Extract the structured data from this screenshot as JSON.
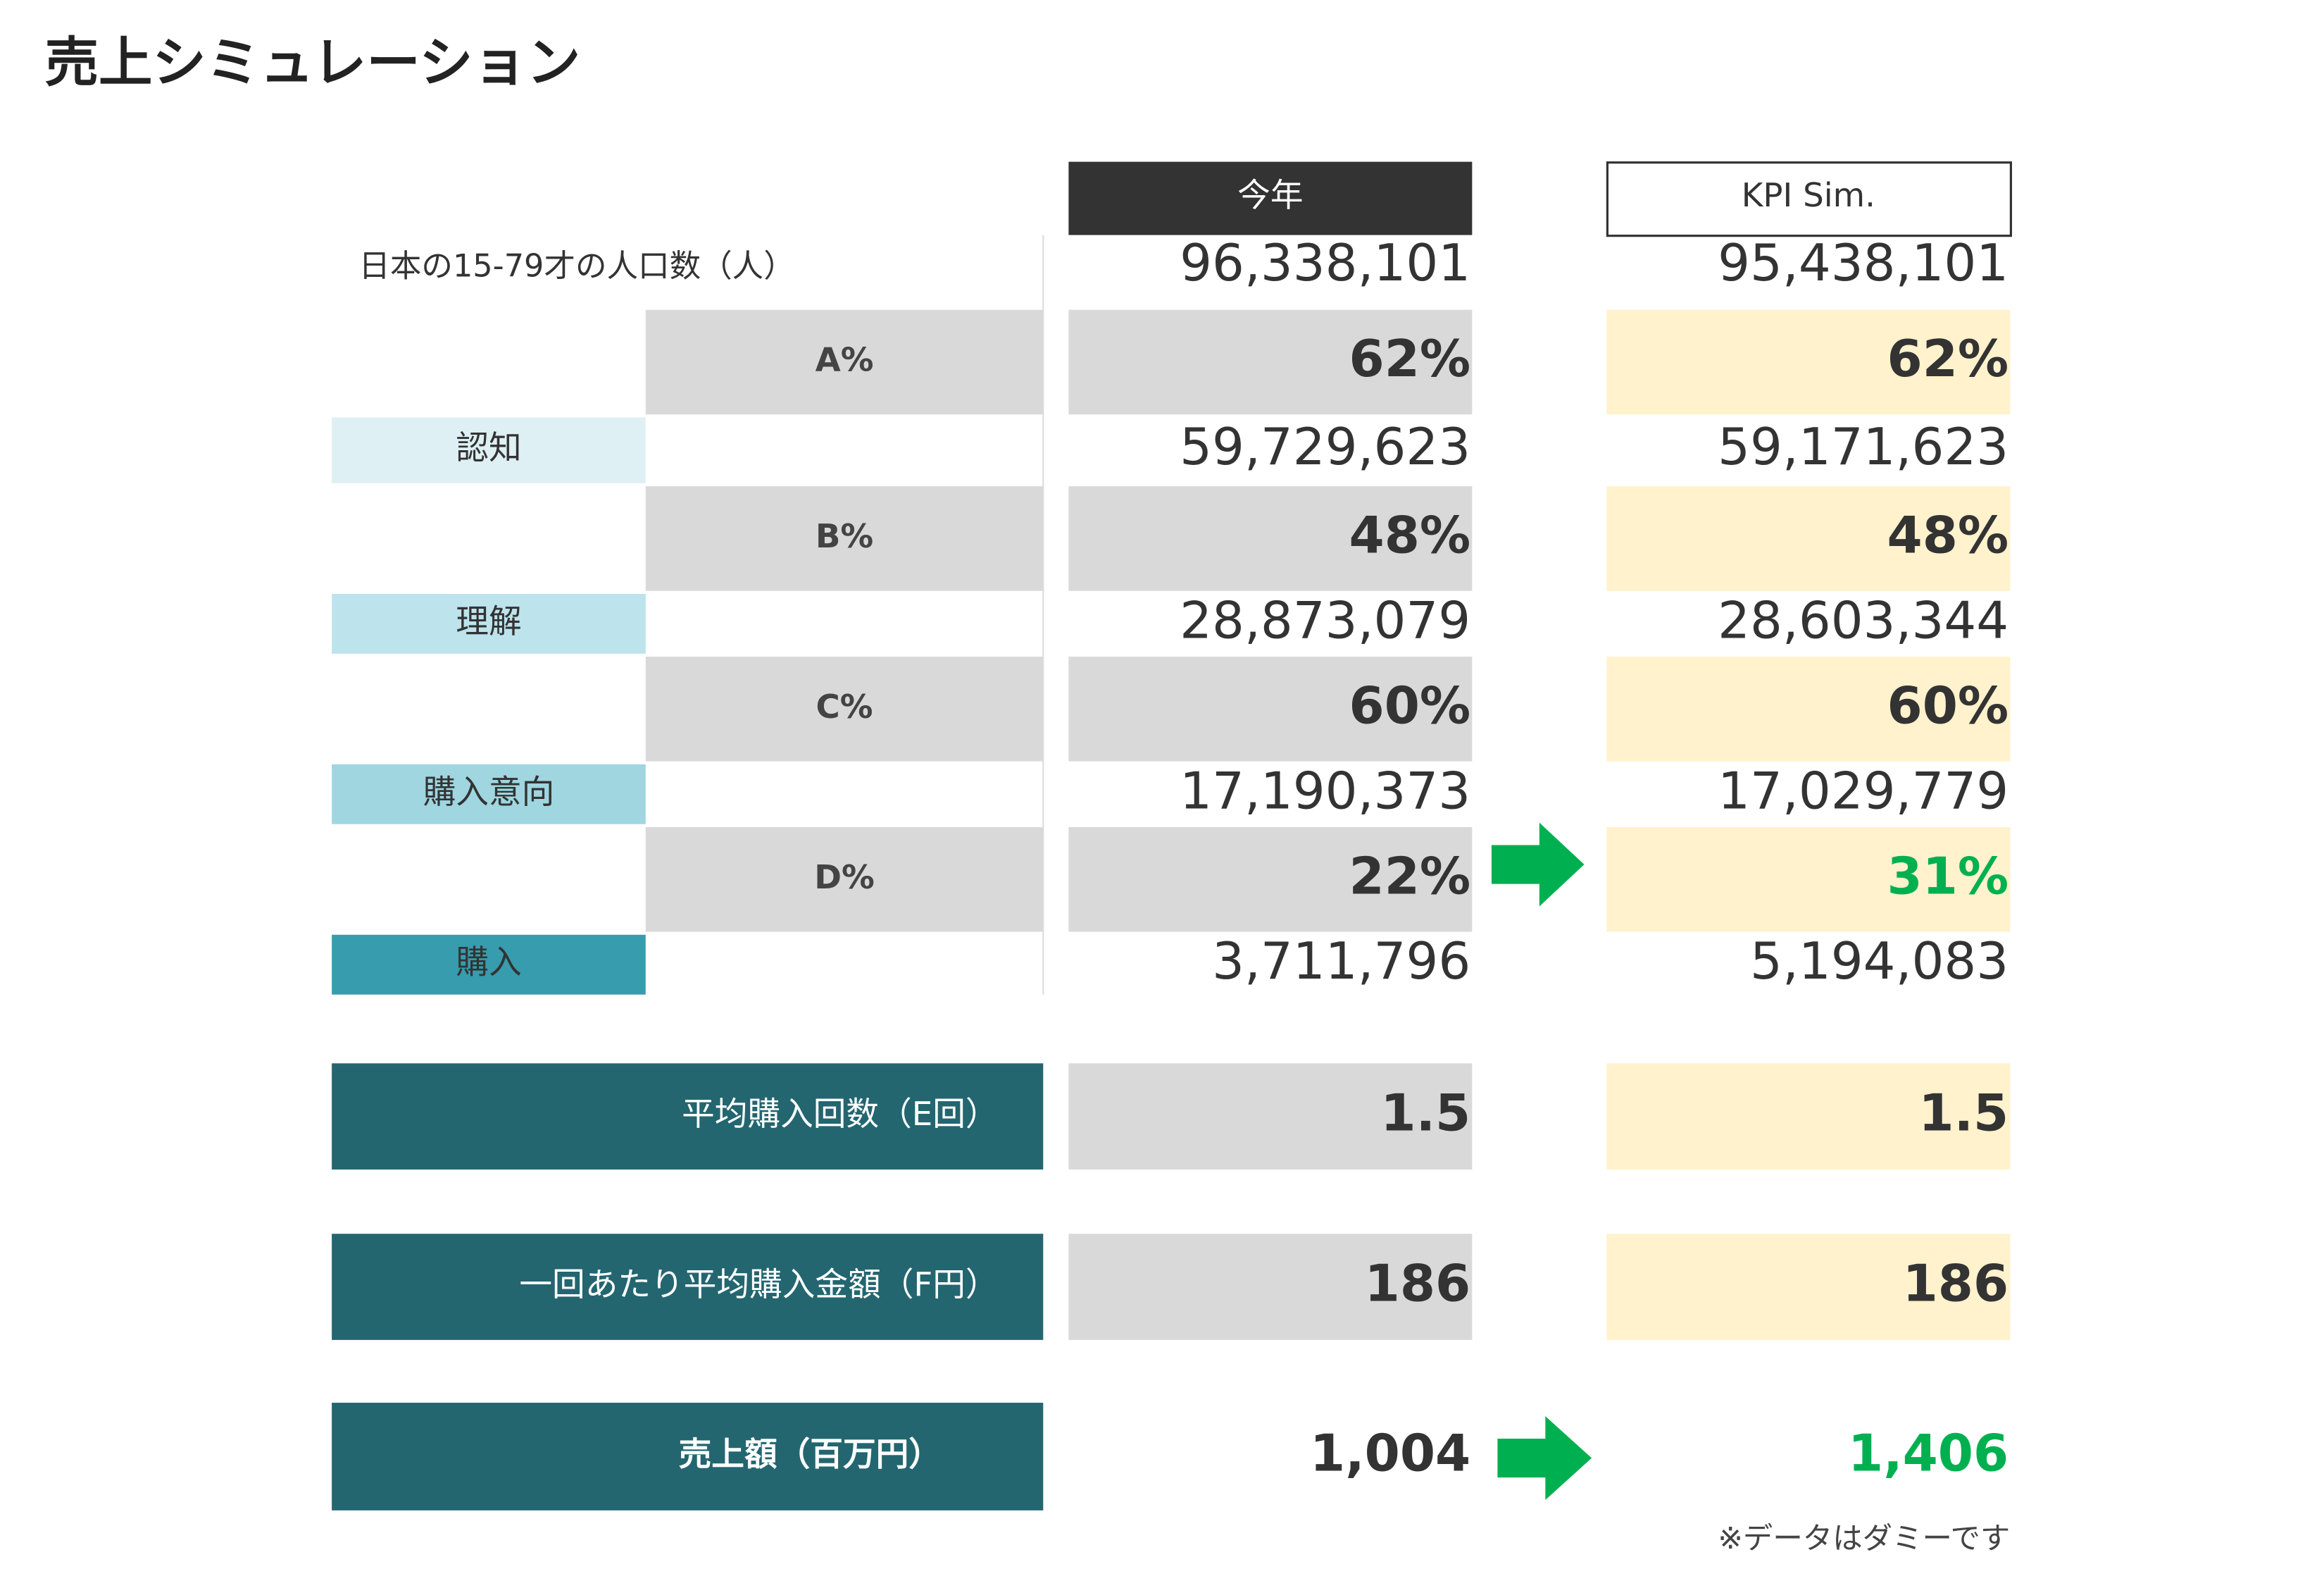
{
  "title": "売上シミュレーション",
  "columns": [
    "今年",
    "KPI Sim."
  ],
  "rows": [
    {
      "label": "日本の15-79才の人口数（人）",
      "current": "96,338,101",
      "sim": "95,438,101"
    },
    {
      "label": "A%",
      "current": "62%",
      "sim": "62%"
    },
    {
      "label": "認知",
      "current": "59,729,623",
      "sim": "59,171,623"
    },
    {
      "label": "B%",
      "current": "48%",
      "sim": "48%"
    },
    {
      "label": "理解",
      "current": "28,873,079",
      "sim": "28,603,344"
    },
    {
      "label": "C%",
      "current": "60%",
      "sim": "60%"
    },
    {
      "label": "購入意向",
      "current": "17,190,373",
      "sim": "17,029,779"
    },
    {
      "label": "D%",
      "current": "22%",
      "sim": "31%"
    },
    {
      "label": "購入",
      "current": "3,711,796",
      "sim": "5,194,083"
    },
    {
      "label": "平均購入回数（E回）",
      "current": "1.5",
      "sim": "1.5"
    },
    {
      "label": "一回あたり平均購入金額（F円）",
      "current": "186",
      "sim": "186"
    },
    {
      "label": "売上額（百万円）",
      "current": "1,004",
      "sim": "1,406"
    }
  ],
  "note": "※データはダミーです"
}
